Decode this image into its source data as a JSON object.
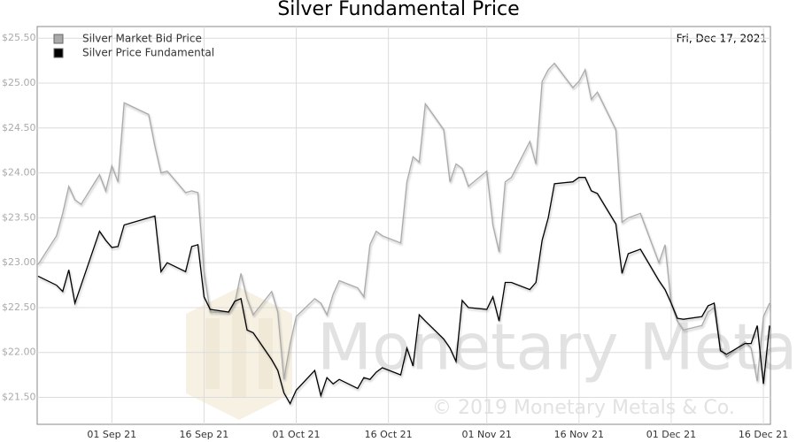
{
  "chart_data": {
    "type": "line",
    "title": "Silver Fundamental Price",
    "date_label": "Fri, Dec 17, 2021",
    "watermark": "Monetary Metals",
    "copyright": "© 2019 Monetary Metals & Co.",
    "x": [
      "2021-08-20",
      "2021-08-23",
      "2021-08-24",
      "2021-08-25",
      "2021-08-26",
      "2021-08-27",
      "2021-08-30",
      "2021-08-31",
      "2021-09-01",
      "2021-09-02",
      "2021-09-03",
      "2021-09-07",
      "2021-09-08",
      "2021-09-09",
      "2021-09-10",
      "2021-09-13",
      "2021-09-14",
      "2021-09-15",
      "2021-09-16",
      "2021-09-17",
      "2021-09-20",
      "2021-09-21",
      "2021-09-22",
      "2021-09-23",
      "2021-09-24",
      "2021-09-27",
      "2021-09-28",
      "2021-09-29",
      "2021-09-30",
      "2021-10-01",
      "2021-10-04",
      "2021-10-05",
      "2021-10-06",
      "2021-10-07",
      "2021-10-08",
      "2021-10-11",
      "2021-10-12",
      "2021-10-13",
      "2021-10-14",
      "2021-10-15",
      "2021-10-18",
      "2021-10-19",
      "2021-10-20",
      "2021-10-21",
      "2021-10-22",
      "2021-10-25",
      "2021-10-26",
      "2021-10-27",
      "2021-10-28",
      "2021-10-29",
      "2021-11-01",
      "2021-11-02",
      "2021-11-03",
      "2021-11-04",
      "2021-11-05",
      "2021-11-08",
      "2021-11-09",
      "2021-11-10",
      "2021-11-11",
      "2021-11-12",
      "2021-11-15",
      "2021-11-16",
      "2021-11-17",
      "2021-11-18",
      "2021-11-19",
      "2021-11-22",
      "2021-11-23",
      "2021-11-24",
      "2021-11-26",
      "2021-11-29",
      "2021-11-30",
      "2021-12-01",
      "2021-12-02",
      "2021-12-03",
      "2021-12-06",
      "2021-12-07",
      "2021-12-08",
      "2021-12-09",
      "2021-12-10",
      "2021-12-13",
      "2021-12-14",
      "2021-12-15",
      "2021-12-16",
      "2021-12-17"
    ],
    "series": [
      {
        "name": "Silver Market Bid Price",
        "color": "#aaaaaa",
        "values": [
          22.98,
          23.3,
          23.55,
          23.85,
          23.7,
          23.65,
          23.98,
          23.8,
          24.08,
          23.9,
          24.78,
          24.65,
          24.3,
          24.0,
          24.02,
          23.78,
          23.8,
          23.78,
          22.9,
          22.45,
          22.45,
          22.55,
          22.88,
          22.6,
          22.42,
          22.68,
          22.45,
          21.7,
          22.1,
          22.4,
          22.6,
          22.55,
          22.42,
          22.65,
          22.8,
          22.72,
          22.62,
          23.2,
          23.35,
          23.3,
          23.22,
          23.9,
          24.18,
          24.12,
          24.77,
          24.48,
          23.9,
          24.1,
          24.05,
          23.85,
          24.02,
          23.42,
          23.12,
          23.9,
          23.95,
          24.35,
          24.1,
          25.02,
          25.15,
          25.22,
          24.95,
          25.02,
          25.15,
          24.82,
          24.9,
          24.48,
          23.45,
          23.5,
          23.55,
          23.0,
          23.2,
          22.55,
          22.35,
          22.25,
          22.3,
          22.45,
          22.5,
          22.05,
          21.95,
          22.12,
          22.05,
          21.68,
          22.4,
          22.55
        ]
      },
      {
        "name": "Silver Price Fundamental",
        "color": "#000000",
        "values": [
          22.85,
          22.75,
          22.68,
          22.92,
          22.55,
          22.75,
          23.35,
          23.25,
          23.17,
          23.18,
          23.42,
          23.5,
          23.52,
          22.9,
          23.0,
          22.9,
          23.18,
          23.2,
          22.62,
          22.48,
          22.45,
          22.57,
          22.6,
          22.25,
          22.22,
          21.92,
          21.8,
          21.55,
          21.43,
          21.58,
          21.8,
          21.52,
          21.72,
          21.65,
          21.7,
          21.6,
          21.72,
          21.7,
          21.78,
          21.83,
          21.75,
          22.05,
          21.85,
          22.42,
          22.35,
          22.15,
          22.05,
          21.9,
          22.58,
          22.5,
          22.48,
          22.62,
          22.35,
          22.78,
          22.78,
          22.7,
          22.78,
          23.25,
          23.5,
          23.88,
          23.9,
          23.95,
          23.95,
          23.8,
          23.77,
          23.43,
          22.88,
          23.1,
          23.15,
          22.8,
          22.7,
          22.55,
          22.38,
          22.37,
          22.4,
          22.52,
          22.55,
          22.02,
          21.98,
          22.1,
          22.1,
          22.3,
          21.65,
          22.3
        ]
      }
    ],
    "xlim": [
      "2021-08-20",
      "2021-12-17"
    ],
    "xticks": [
      {
        "value": "2021-09-01",
        "label": "01 Sep 21"
      },
      {
        "value": "2021-09-16",
        "label": "16 Sep 21"
      },
      {
        "value": "2021-10-01",
        "label": "01 Oct 21"
      },
      {
        "value": "2021-10-16",
        "label": "16 Oct 21"
      },
      {
        "value": "2021-11-01",
        "label": "01 Nov 21"
      },
      {
        "value": "2021-11-16",
        "label": "16 Nov 21"
      },
      {
        "value": "2021-12-01",
        "label": "01 Dec 21"
      },
      {
        "value": "2021-12-16",
        "label": "16 Dec 21"
      }
    ],
    "ylim": [
      21.2,
      25.63
    ],
    "yticks": [
      {
        "value": 21.5,
        "label": "$21.50"
      },
      {
        "value": 22,
        "label": "$22.00"
      },
      {
        "value": 22.5,
        "label": "$22.50"
      },
      {
        "value": 23,
        "label": "$23.00"
      },
      {
        "value": 23.5,
        "label": "$23.50"
      },
      {
        "value": 24,
        "label": "$24.00"
      },
      {
        "value": 24.5,
        "label": "$24.50"
      },
      {
        "value": 25,
        "label": "$25.00"
      },
      {
        "value": 25.5,
        "label": "$25.50"
      }
    ],
    "grid": true
  }
}
